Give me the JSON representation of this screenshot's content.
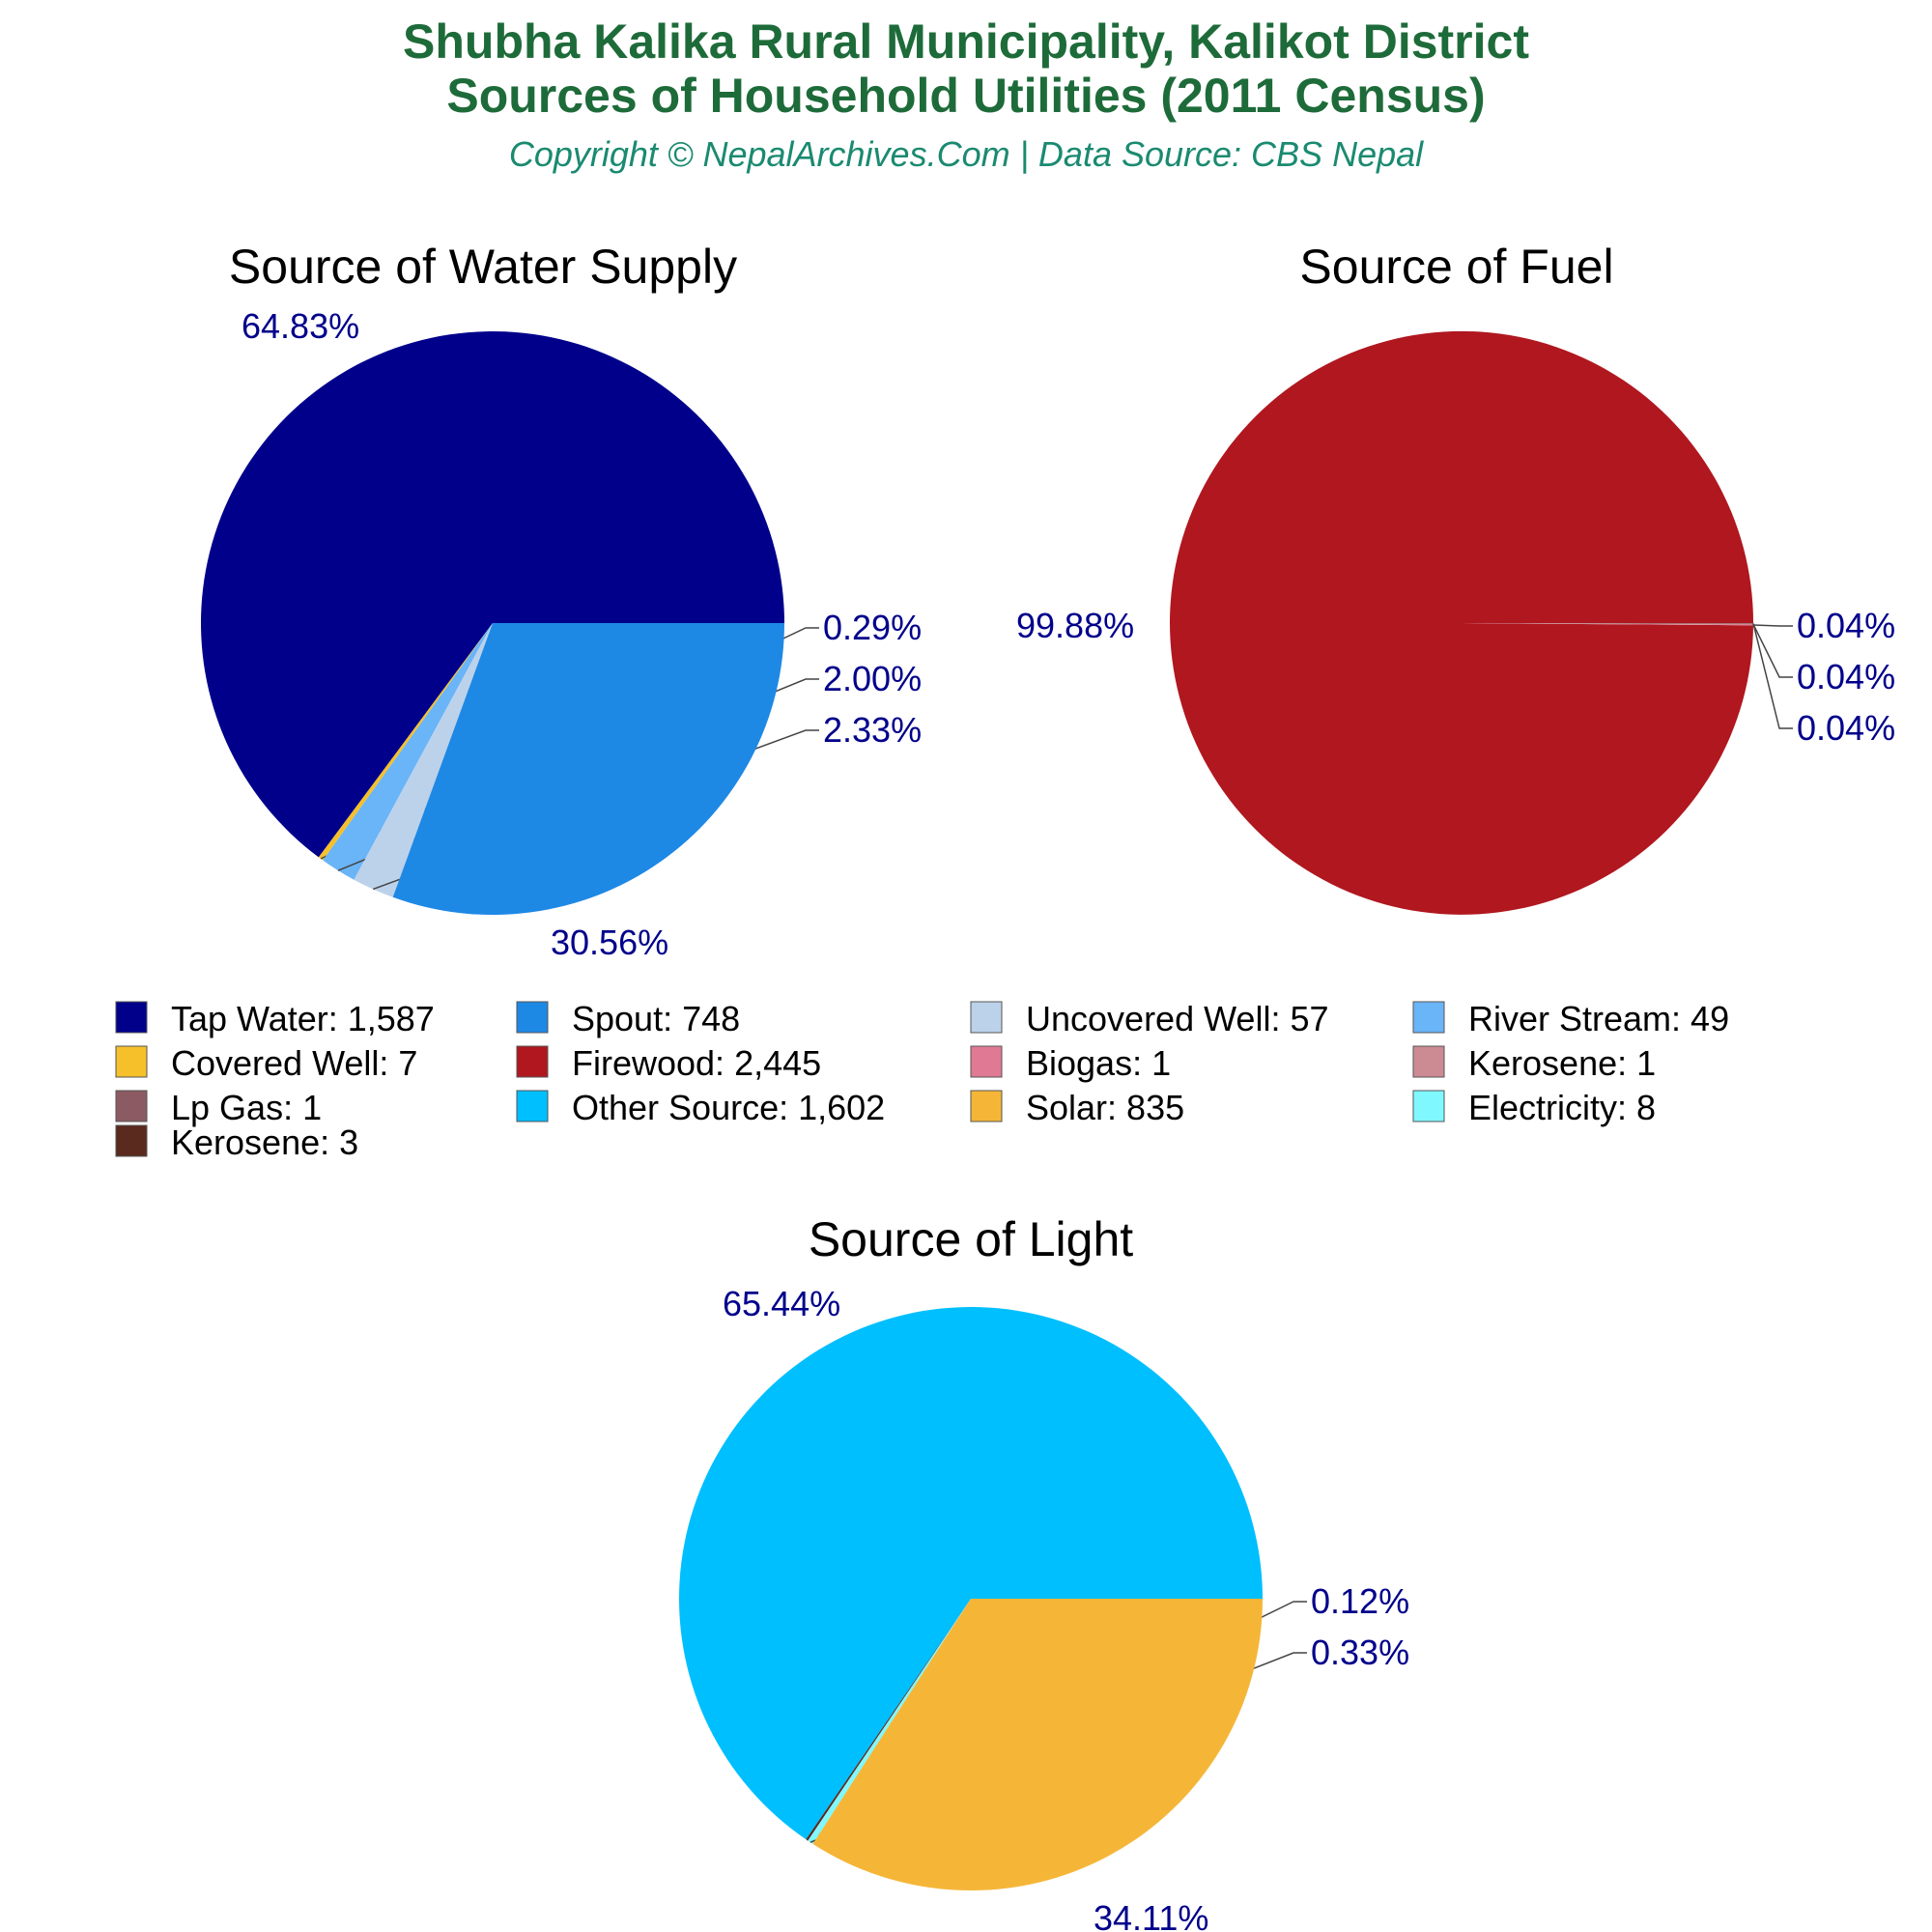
{
  "header": {
    "title_line1": "Shubha Kalika Rural Municipality, Kalikot District",
    "title_line2": "Sources of Household Utilities (2011 Census)",
    "subtitle": "Copyright © NepalArchives.Com | Data Source: CBS Nepal"
  },
  "chart_data": [
    {
      "type": "pie",
      "id": "water",
      "title": "Source of Water Supply",
      "slices": [
        {
          "label": "Tap Water",
          "value": 1587,
          "color": "#00008b",
          "pct_label": "64.83%"
        },
        {
          "label": "Covered Well",
          "value": 7,
          "color": "#f5c02a",
          "pct_label": "0.29%"
        },
        {
          "label": "River Stream",
          "value": 49,
          "color": "#6ab4f8",
          "pct_label": "2.00%"
        },
        {
          "label": "Uncovered Well",
          "value": 57,
          "color": "#bcd2ea",
          "pct_label": "2.33%"
        },
        {
          "label": "Spout",
          "value": 748,
          "color": "#1e88e5",
          "pct_label": "30.56%"
        }
      ]
    },
    {
      "type": "pie",
      "id": "fuel",
      "title": "Source of Fuel",
      "slices": [
        {
          "label": "Firewood",
          "value": 2445,
          "color": "#b0171f",
          "pct_label": "99.88%"
        },
        {
          "label": "Biogas",
          "value": 1,
          "color": "#e07a94",
          "pct_label": "0.04%"
        },
        {
          "label": "Kerosene",
          "value": 1,
          "color": "#cc8a92",
          "pct_label": "0.04%"
        },
        {
          "label": "Lp Gas",
          "value": 1,
          "color": "#8c5a62",
          "pct_label": "0.04%"
        }
      ]
    },
    {
      "type": "pie",
      "id": "light",
      "title": "Source of Light",
      "slices": [
        {
          "label": "Other Source",
          "value": 1602,
          "color": "#00bfff",
          "pct_label": "65.44%"
        },
        {
          "label": "Kerosene",
          "value": 3,
          "color": "#5a2a1e",
          "pct_label": "0.12%"
        },
        {
          "label": "Electricity",
          "value": 8,
          "color": "#80f8ff",
          "pct_label": "0.33%"
        },
        {
          "label": "Solar",
          "value": 835,
          "color": "#f5b638",
          "pct_label": "34.11%"
        }
      ]
    }
  ],
  "legend": [
    {
      "text": "Tap Water: 1,587",
      "color": "#00008b"
    },
    {
      "text": "Spout: 748",
      "color": "#1e88e5"
    },
    {
      "text": "Uncovered Well: 57",
      "color": "#bcd2ea"
    },
    {
      "text": "River Stream: 49",
      "color": "#6ab4f8"
    },
    {
      "text": "Covered Well: 7",
      "color": "#f5c02a"
    },
    {
      "text": "Firewood: 2,445",
      "color": "#b0171f"
    },
    {
      "text": "Biogas: 1",
      "color": "#e07a94"
    },
    {
      "text": "Kerosene: 1",
      "color": "#cc8a92"
    },
    {
      "text": "Lp Gas: 1",
      "color": "#8c5a62"
    },
    {
      "text": "Other Source: 1,602",
      "color": "#00bfff"
    },
    {
      "text": "Solar: 835",
      "color": "#f5b638"
    },
    {
      "text": "Electricity: 8",
      "color": "#80f8ff"
    },
    {
      "text": "Kerosene: 3",
      "color": "#5a2a1e"
    }
  ]
}
